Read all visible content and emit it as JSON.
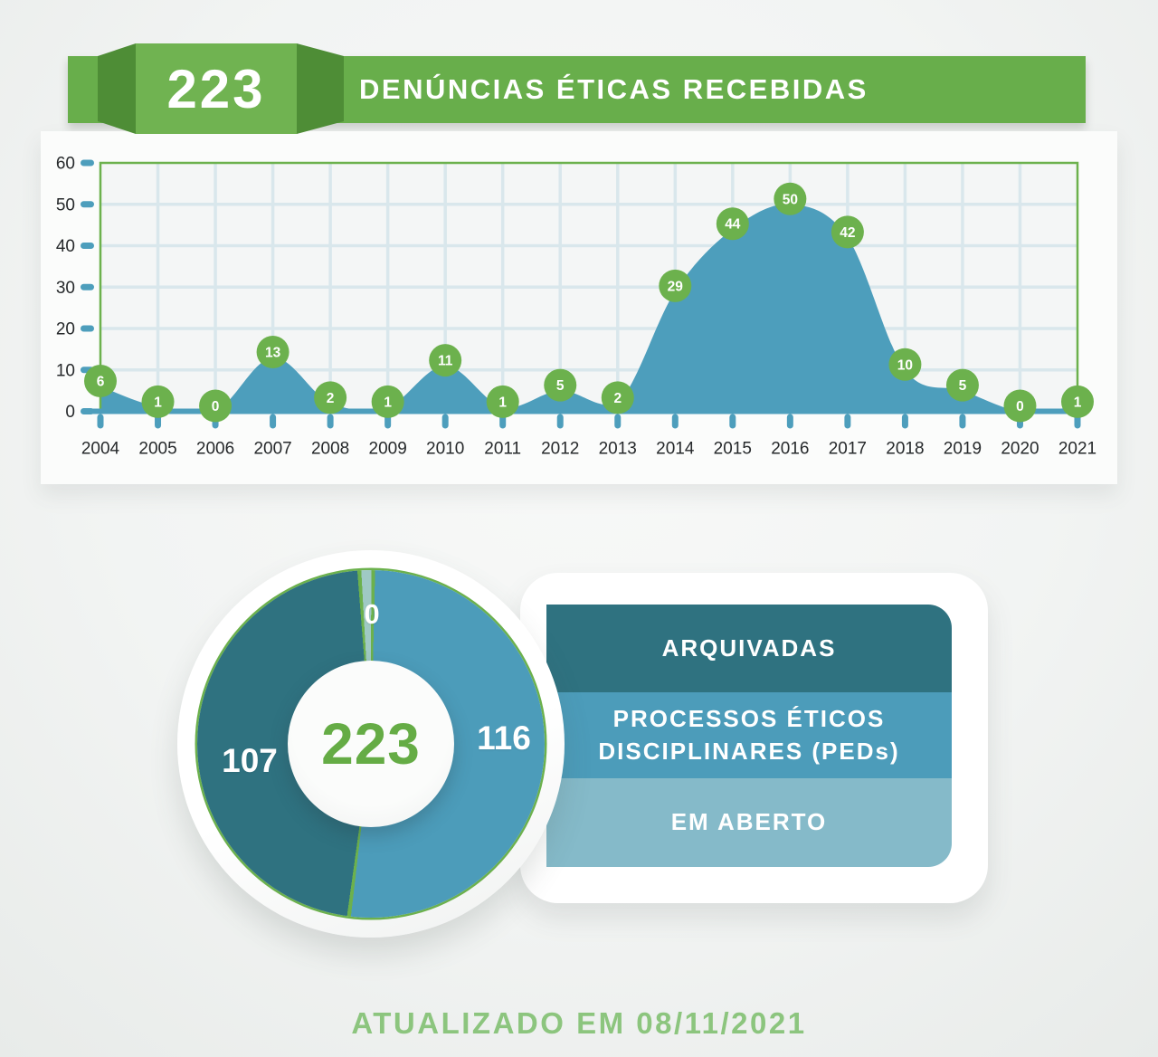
{
  "header": {
    "badge_value": "223",
    "title": "DENÚNCIAS ÉTICAS RECEBIDAS"
  },
  "chart_data": [
    {
      "type": "area",
      "title": "DENÚNCIAS ÉTICAS RECEBIDAS",
      "total": 223,
      "categories": [
        "2004",
        "2005",
        "2006",
        "2007",
        "2008",
        "2009",
        "2010",
        "2011",
        "2012",
        "2013",
        "2014",
        "2015",
        "2016",
        "2017",
        "2018",
        "2019",
        "2020",
        "2021"
      ],
      "values": [
        6,
        1,
        0,
        13,
        2,
        1,
        11,
        1,
        5,
        2,
        29,
        44,
        50,
        42,
        10,
        5,
        0,
        1
      ],
      "xlabel": "",
      "ylabel": "",
      "ylim": [
        0,
        60
      ],
      "yticks": [
        0,
        10,
        20,
        30,
        40,
        50,
        60
      ],
      "grid": true,
      "point_labels": true,
      "legend_position": "none"
    },
    {
      "type": "pie",
      "subtype": "donut",
      "center_total": "223",
      "slices": [
        {
          "label": "ARQUIVADAS",
          "value": 107
        },
        {
          "label": "PROCESSOS ÉTICOS DISCIPLINARES (PEDs)",
          "value": 116
        },
        {
          "label": "EM ABERTO",
          "value": 0
        }
      ],
      "legend_position": "right"
    }
  ],
  "footer": {
    "updated_text": "ATUALIZADO EM 08/11/2021"
  },
  "colors": {
    "banner_green": "#68ae4b",
    "badge_green": "#70b351",
    "badge_fold_green": "#4e8d36",
    "accent_green": "#6cb14d",
    "area_blue": "#4d9ebc",
    "grid_blue": "#d9e7ec",
    "plot_bg": "#f4f6f6",
    "teal_arquivadas": "#2f7280",
    "blue_peds": "#4c9cba",
    "light_em_aberto": "#85bac9",
    "sliver_em_aberto": "#9fc9c4",
    "axis_text": "#26292b",
    "footer_green": "#8cc57e",
    "donut_total_green": "#65ac45"
  }
}
